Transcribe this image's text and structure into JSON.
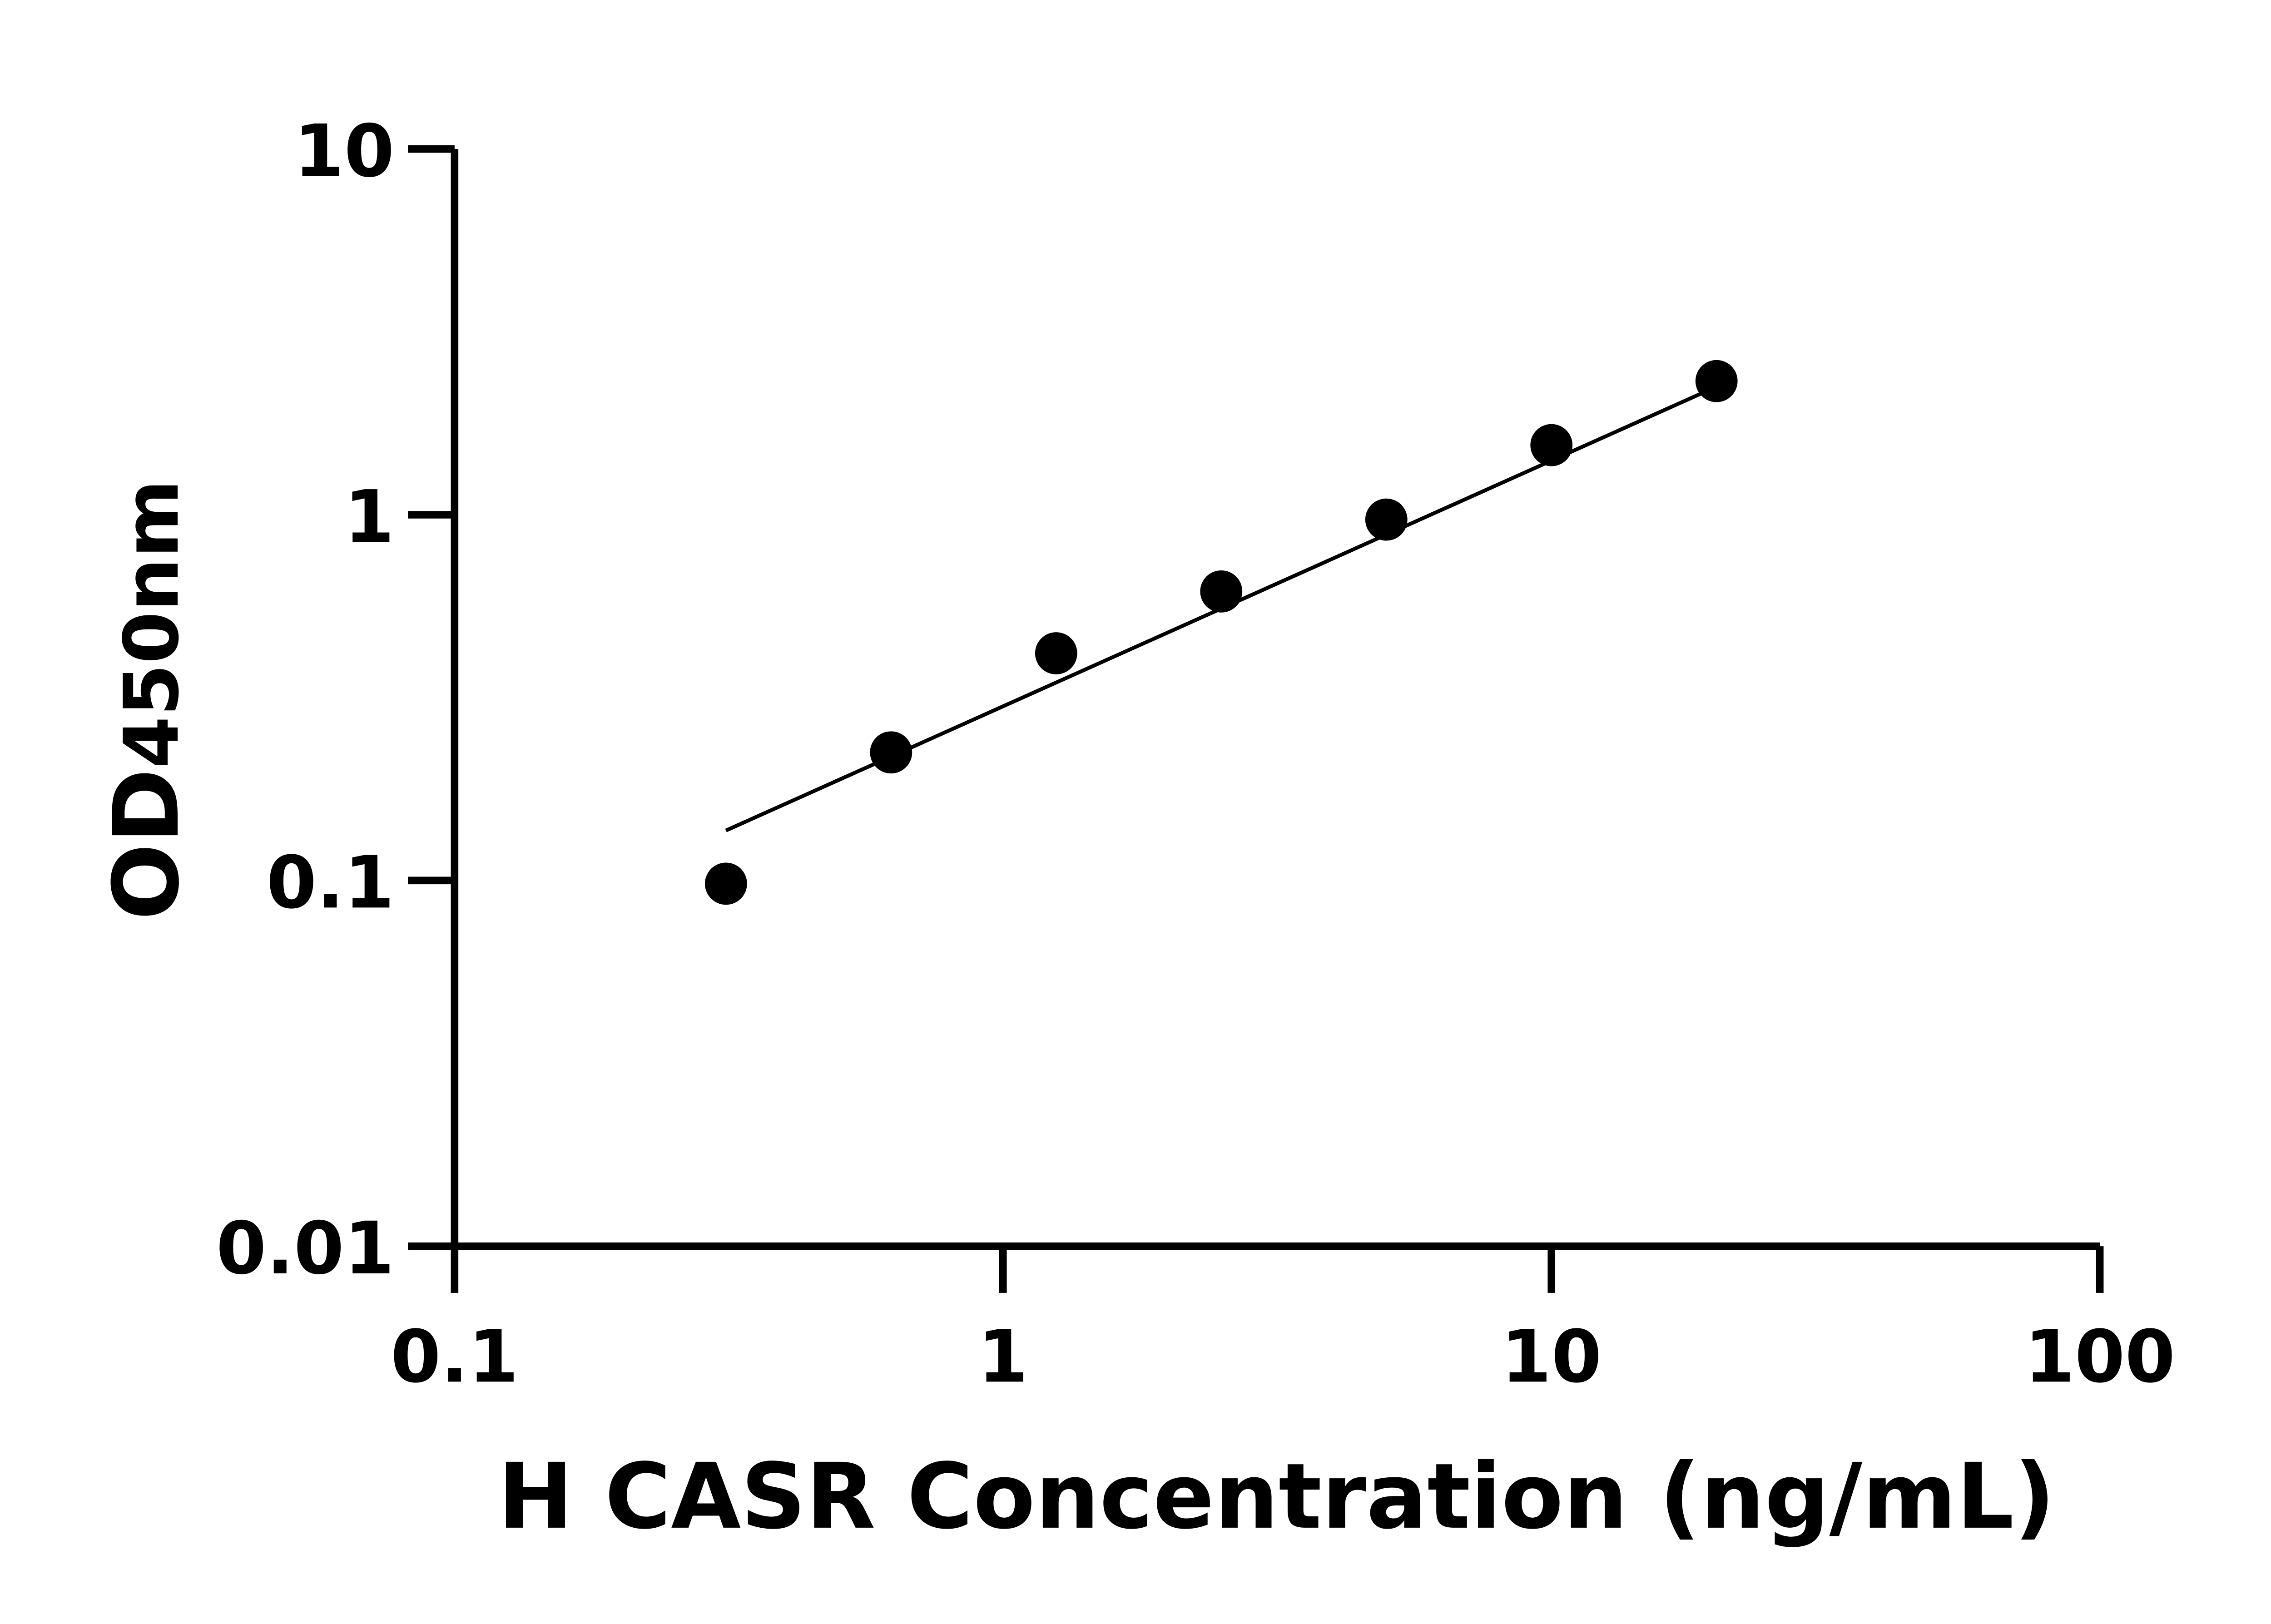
{
  "chart_data": {
    "type": "scatter",
    "title": "",
    "xlabel": "H CASR Concentration (ng/mL)",
    "ylabel_main": "OD",
    "ylabel_sub": "450nm",
    "xscale": "log",
    "yscale": "log",
    "xlim": [
      0.1,
      100
    ],
    "ylim": [
      0.01,
      10
    ],
    "xticks": [
      0.1,
      1,
      10,
      100
    ],
    "xtick_labels": [
      "0.1",
      "1",
      "10",
      "100"
    ],
    "yticks": [
      0.01,
      0.1,
      1,
      10
    ],
    "ytick_labels": [
      "0.01",
      "0.1",
      "1",
      "10"
    ],
    "grid": false,
    "legend": "none",
    "series": [
      {
        "x": [
          0.3125,
          0.625,
          1.25,
          2.5,
          5,
          10,
          20
        ],
        "y": [
          0.098,
          0.224,
          0.418,
          0.617,
          0.97,
          1.55,
          2.32
        ],
        "marker_color": "#000000"
      }
    ],
    "fit_line": {
      "x": [
        0.3125,
        20
      ],
      "y": [
        0.137,
        2.24
      ],
      "color": "#000000"
    }
  }
}
